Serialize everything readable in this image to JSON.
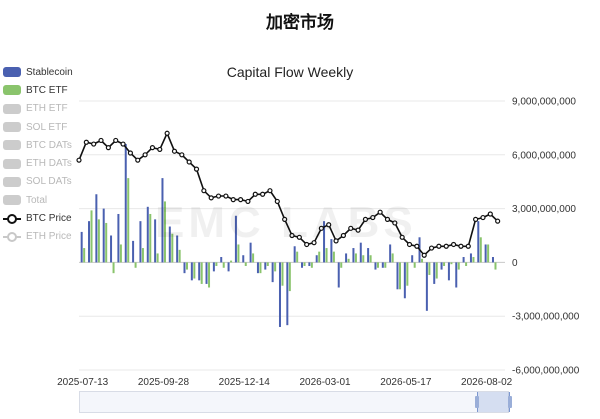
{
  "page_title": "加密市场",
  "watermark": "EMC LABS",
  "legend": [
    {
      "label": "Stablecoin",
      "kind": "bar",
      "color": "#4a60b0",
      "active": true
    },
    {
      "label": "BTC ETF",
      "kind": "bar",
      "color": "#8ac46c",
      "active": true
    },
    {
      "label": "ETH ETF",
      "kind": "bar",
      "color": "#cccccc",
      "active": false
    },
    {
      "label": "SOL ETF",
      "kind": "bar",
      "color": "#cccccc",
      "active": false
    },
    {
      "label": "BTC DATs",
      "kind": "bar",
      "color": "#cccccc",
      "active": false
    },
    {
      "label": "ETH DATs",
      "kind": "bar",
      "color": "#cccccc",
      "active": false
    },
    {
      "label": "SOL DATs",
      "kind": "bar",
      "color": "#cccccc",
      "active": false
    },
    {
      "label": "Total",
      "kind": "bar",
      "color": "#cccccc",
      "active": false
    },
    {
      "label": "BTC Price",
      "kind": "line",
      "color": "#111111",
      "active": true
    },
    {
      "label": "ETH Price",
      "kind": "line",
      "color": "#cccccc",
      "active": false
    }
  ],
  "chart_data": {
    "type": "bar",
    "title": "Capital Flow Weekly",
    "ylim": [
      -6000000000,
      9000000000
    ],
    "y_ticks": [
      9000000000,
      6000000000,
      3000000000,
      0,
      -3000000000,
      -6000000000
    ],
    "y_tick_labels": [
      "9,000,000,000",
      "6,000,000,000",
      "3,000,000,000",
      "0",
      "-3,000,000,000",
      "-6,000,000,000"
    ],
    "x_tick_labels": [
      "2025-07-13",
      "2025-09-28",
      "2025-12-14",
      "2026-03-01",
      "2026-05-17",
      "2026-08-02"
    ],
    "x_tick_index": [
      0,
      11,
      22,
      33,
      44,
      55
    ],
    "grid": true,
    "legend_position": "left",
    "series": [
      {
        "name": "Stablecoin",
        "color": "#4a60b0",
        "values": [
          1700000000,
          2300000000,
          3800000000,
          3000000000,
          1500000000,
          2700000000,
          6600000000,
          1200000000,
          2300000000,
          3100000000,
          2400000000,
          4700000000,
          2000000000,
          1500000000,
          -600000000,
          -1000000000,
          -1000000000,
          -1200000000,
          -500000000,
          300000000,
          -500000000,
          2600000000,
          400000000,
          1100000000,
          -600000000,
          -400000000,
          -1100000000,
          -3600000000,
          -3500000000,
          900000000,
          -300000000,
          -200000000,
          400000000,
          2300000000,
          1300000000,
          -1400000000,
          500000000,
          800000000,
          1100000000,
          800000000,
          -400000000,
          -300000000,
          1000000000,
          -1500000000,
          -2000000000,
          400000000,
          1400000000,
          -2700000000,
          -1200000000,
          -400000000,
          -1000000000,
          -1400000000,
          300000000,
          500000000,
          2300000000,
          1000000000,
          300000000
        ],
        "bar_index": [
          0,
          1,
          2,
          3,
          4,
          5,
          6,
          7,
          8,
          9,
          10,
          11,
          12,
          13,
          14,
          15,
          16,
          17,
          18,
          19,
          20,
          21,
          22,
          23,
          24,
          25,
          26,
          27,
          28,
          29,
          30,
          31,
          32,
          33,
          34,
          35,
          36,
          37,
          38,
          39,
          40,
          41,
          42,
          43,
          44,
          45,
          46,
          47,
          48,
          49,
          50,
          51,
          52,
          53,
          54,
          55,
          56
        ]
      },
      {
        "name": "BTC ETF",
        "color": "#8ac46c",
        "values": [
          800000000,
          2900000000,
          2400000000,
          2200000000,
          -600000000,
          1000000000,
          4700000000,
          -300000000,
          800000000,
          2700000000,
          500000000,
          3400000000,
          1600000000,
          700000000,
          -400000000,
          -900000000,
          -1200000000,
          -1400000000,
          -200000000,
          -300000000,
          100000000,
          1000000000,
          -200000000,
          500000000,
          -600000000,
          -200000000,
          -500000000,
          -1300000000,
          -1600000000,
          600000000,
          -200000000,
          -300000000,
          600000000,
          800000000,
          600000000,
          -300000000,
          200000000,
          500000000,
          400000000,
          400000000,
          -300000000,
          -300000000,
          500000000,
          -1500000000,
          -1300000000,
          -300000000,
          200000000,
          -700000000,
          -900000000,
          -200000000,
          -100000000,
          -400000000,
          -200000000,
          300000000,
          1400000000,
          1000000000,
          -400000000
        ],
        "bar_index": [
          0,
          1,
          2,
          3,
          4,
          5,
          6,
          7,
          8,
          9,
          10,
          11,
          12,
          13,
          14,
          15,
          16,
          17,
          18,
          19,
          20,
          21,
          22,
          23,
          24,
          25,
          26,
          27,
          28,
          29,
          30,
          31,
          32,
          33,
          34,
          35,
          36,
          37,
          38,
          39,
          40,
          41,
          42,
          43,
          44,
          45,
          46,
          47,
          48,
          49,
          50,
          51,
          52,
          53,
          54,
          55,
          56
        ]
      }
    ],
    "btc_price": {
      "name": "BTC Price",
      "color": "#111111",
      "values": [
        5700000000,
        6700000000,
        6600000000,
        6800000000,
        6400000000,
        6800000000,
        6600000000,
        6100000000,
        5700000000,
        6000000000,
        6400000000,
        6300000000,
        7200000000,
        6200000000,
        6000000000,
        5600000000,
        5200000000,
        4000000000,
        3600000000,
        3700000000,
        3700000000,
        3500000000,
        3500000000,
        3400000000,
        3800000000,
        3800000000,
        4000000000,
        3400000000,
        2400000000,
        1500000000,
        1400000000,
        1000000000,
        1100000000,
        1900000000,
        2100000000,
        1200000000,
        1500000000,
        1900000000,
        1800000000,
        2400000000,
        2500000000,
        2800000000,
        2400000000,
        2200000000,
        1400000000,
        1000000000,
        900000000,
        400000000,
        800000000,
        900000000,
        900000000,
        1000000000,
        900000000,
        900000000,
        2400000000,
        2500000000,
        2700000000,
        2300000000
      ],
      "point_index": [
        0,
        1,
        2,
        3,
        4,
        5,
        6,
        7,
        8,
        9,
        10,
        11,
        12,
        13,
        14,
        15,
        16,
        17,
        18,
        19,
        20,
        21,
        22,
        23,
        24,
        25,
        26,
        27,
        28,
        29,
        30,
        31,
        32,
        33,
        34,
        35,
        36,
        37,
        38,
        39,
        40,
        41,
        42,
        43,
        44,
        45,
        46,
        47,
        48,
        49,
        50,
        51,
        52,
        53,
        54,
        55,
        56,
        57
      ]
    }
  }
}
